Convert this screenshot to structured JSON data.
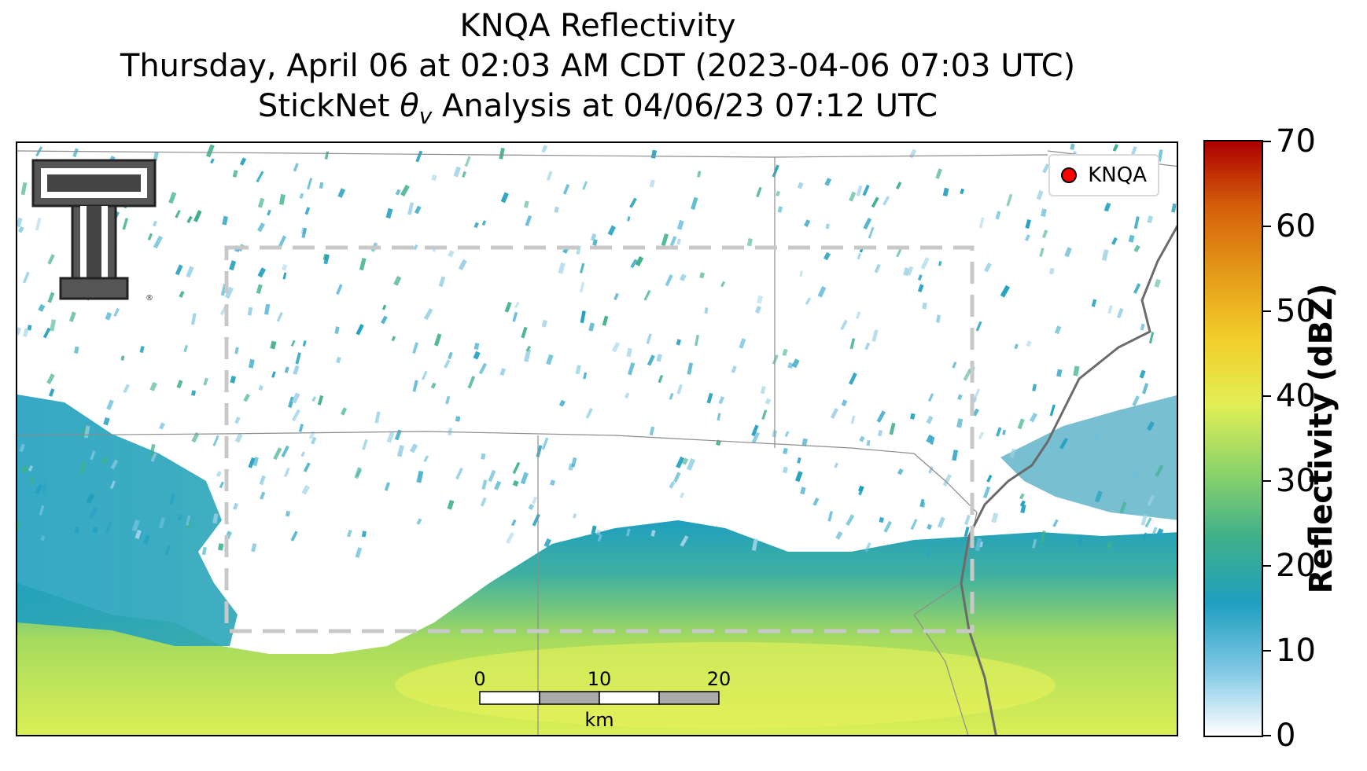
{
  "title": {
    "line1": "KNQA Reflectivity",
    "line2": "Thursday, April 06 at 02:03 AM CDT (2023-04-06 07:03 UTC)",
    "line3": "StickNet θv Analysis at 04/06/23 07:12 UTC"
  },
  "legend": {
    "label": "KNQA",
    "marker_color": "#ff0000"
  },
  "scale_bar": {
    "labels": [
      "0",
      "10",
      "20"
    ],
    "unit": "km",
    "segment_colors": [
      "#ffffff",
      "#aaaaaa"
    ]
  },
  "colorbar": {
    "label": "Reflectivity (dBZ)",
    "ticks": [
      "0",
      "10",
      "20",
      "30",
      "40",
      "50",
      "60",
      "70"
    ],
    "range": [
      0,
      70
    ],
    "colors": [
      "#ffffff",
      "#7fc7e4",
      "#1f9fbf",
      "#3fb08a",
      "#8cd36a",
      "#e1ef55",
      "#f2cf2a",
      "#e49a18",
      "#d5600b",
      "#ad0000"
    ]
  },
  "logo": {
    "name": "Texas Tech double-T",
    "mark": "®"
  },
  "annotation_box": {
    "style": "dashed",
    "color": "#c8c8c8"
  }
}
